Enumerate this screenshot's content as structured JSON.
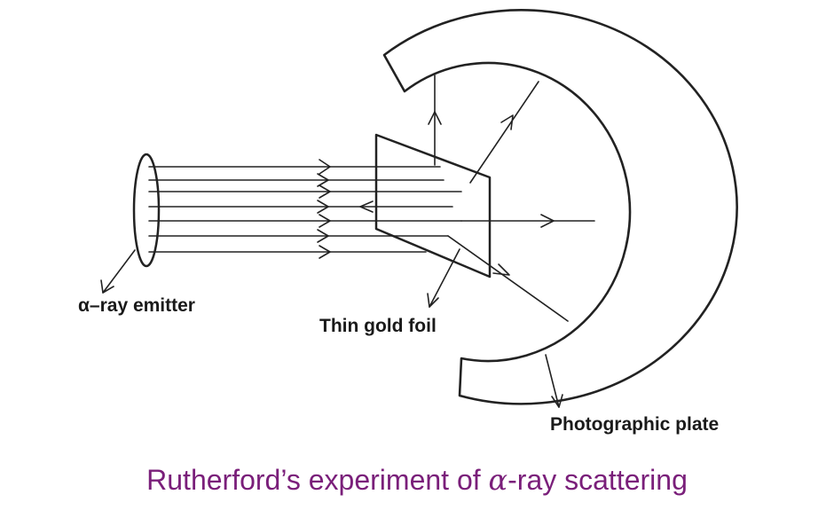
{
  "labels": {
    "emitter": "α–ray emitter",
    "foil": "Thin gold foil",
    "plate": "Photographic plate"
  },
  "caption": {
    "before": "Rutherford’s experiment of ",
    "symbol": "α",
    "after": "-ray scattering"
  },
  "colors": {
    "caption": "#7a1f7a",
    "lines": "#222222",
    "background": "#ffffff"
  }
}
